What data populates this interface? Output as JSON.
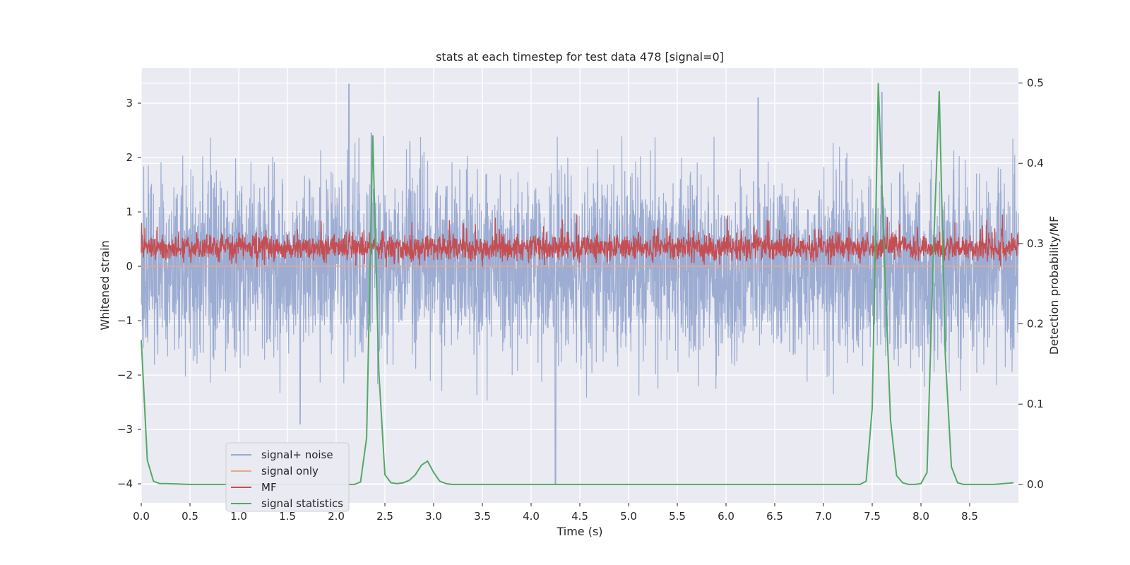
{
  "chart_data": {
    "type": "line",
    "title": "stats at each timestep for test data 478 [signal=0]",
    "xlabel": "Time (s)",
    "ylabel": "Whitened strain",
    "y2label": "Detection probability/MF",
    "xlim": [
      0.0,
      9.0
    ],
    "ylim": [
      -4.35,
      3.65
    ],
    "y2lim": [
      -0.023,
      0.519
    ],
    "xticks": [
      "0.0",
      "0.5",
      "1.0",
      "1.5",
      "2.0",
      "2.5",
      "3.0",
      "3.5",
      "4.0",
      "4.5",
      "5.0",
      "5.5",
      "6.0",
      "6.5",
      "7.0",
      "7.5",
      "8.0",
      "8.5"
    ],
    "yticks": [
      "3",
      "2",
      "1",
      "0",
      "−1",
      "−2",
      "−3",
      "−4"
    ],
    "y2ticks": [
      "0.5",
      "0.4",
      "0.3",
      "0.2",
      "0.1",
      "0.0"
    ],
    "grid": true,
    "legend_position": "lower-left",
    "legend": [
      "signal+ noise",
      "signal only",
      "MF",
      "signal statistics"
    ],
    "colors": {
      "signal_noise": "#98a9d0",
      "signal_only": "#e8a88c",
      "mf": "#c44e52",
      "signal_statistics": "#55a868",
      "background": "#eaeaf2",
      "grid": "#ffffff"
    },
    "series": [
      {
        "name": "signal+ noise",
        "axis": "left",
        "description_values": {
          "typical_min": -2.0,
          "typical_max": 2.0,
          "peak_max": 3.35,
          "peak_min": -4.0
        },
        "notable_peaks": [
          {
            "x": 2.13,
            "y": 3.35
          },
          {
            "x": 2.36,
            "y": 2.45
          },
          {
            "x": 6.33,
            "y": 3.1
          },
          {
            "x": 7.6,
            "y": 3.2
          },
          {
            "x": 4.25,
            "y": -4.0
          },
          {
            "x": 1.63,
            "y": -2.9
          }
        ]
      },
      {
        "name": "signal only",
        "axis": "left",
        "x": [
          0.0,
          9.0
        ],
        "y": [
          0.0,
          0.0
        ]
      },
      {
        "name": "MF",
        "axis": "right",
        "description_values": {
          "typical_min": 0.272,
          "typical_max": 0.318,
          "peak_max": 0.337
        }
      },
      {
        "name": "signal statistics",
        "axis": "right",
        "x": [
          0.0,
          0.0625,
          0.125,
          0.1875,
          0.25,
          0.3125,
          0.375,
          0.4375,
          0.5,
          1.0,
          1.5,
          2.0,
          2.125,
          2.1875,
          2.25,
          2.3125,
          2.375,
          2.4375,
          2.5,
          2.5625,
          2.625,
          2.6875,
          2.75,
          2.8125,
          2.875,
          2.9375,
          3.0,
          3.0625,
          3.125,
          3.1875,
          3.5,
          4.0,
          5.0,
          6.0,
          7.0,
          7.375,
          7.4375,
          7.5,
          7.5625,
          7.625,
          7.6875,
          7.75,
          7.8125,
          7.875,
          7.9375,
          8.0,
          8.0625,
          8.125,
          8.1875,
          8.25,
          8.3125,
          8.375,
          8.4375,
          8.5,
          8.75,
          8.95
        ],
        "y": [
          0.18,
          0.03,
          0.004,
          0.001,
          0.001,
          0.0008,
          0.0005,
          0.0002,
          0.0,
          0.0,
          0.0,
          0.0,
          0.0,
          0.0,
          0.003,
          0.058,
          0.435,
          0.14,
          0.012,
          0.002,
          0.001,
          0.002,
          0.005,
          0.012,
          0.024,
          0.029,
          0.015,
          0.004,
          0.001,
          0.0,
          0.0,
          0.0,
          0.0,
          0.0,
          0.0,
          0.0,
          0.004,
          0.095,
          0.5,
          0.28,
          0.08,
          0.011,
          0.002,
          0.0,
          0.0,
          0.001,
          0.015,
          0.28,
          0.49,
          0.16,
          0.022,
          0.002,
          0.0,
          0.0,
          0.0,
          0.002
        ]
      }
    ]
  }
}
